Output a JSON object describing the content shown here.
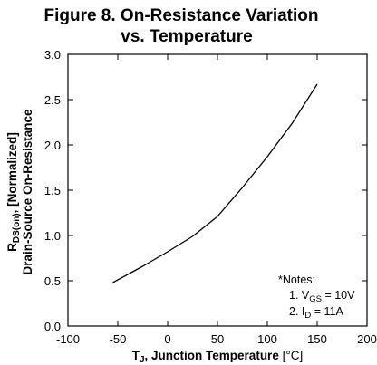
{
  "chart_data": {
    "type": "line",
    "title": "Figure 8. On-Resistance Variation",
    "subtitle": "vs. Temperature",
    "xlabel": {
      "prefix": "T",
      "sub": "J",
      "main": ", Junction Temperature ",
      "unit_open": "[",
      "unit": "°C",
      "unit_close": "]"
    },
    "ylabel": {
      "line1_prefix": "R",
      "line1_sub": "DS(on)",
      "line1_main": ", [Normalized]",
      "line2": "Drain-Source On-Resistance"
    },
    "xlim": [
      -100,
      200
    ],
    "ylim": [
      0.0,
      3.0
    ],
    "x_ticks": [
      {
        "value": -100,
        "label": "-100"
      },
      {
        "value": -50,
        "label": "-50"
      },
      {
        "value": 0,
        "label": "0"
      },
      {
        "value": 50,
        "label": "50"
      },
      {
        "value": 100,
        "label": "100"
      },
      {
        "value": 150,
        "label": "150"
      },
      {
        "value": 200,
        "label": "200"
      }
    ],
    "y_ticks": [
      {
        "value": 0.0,
        "label": "0.0"
      },
      {
        "value": 0.5,
        "label": "0.5"
      },
      {
        "value": 1.0,
        "label": "1.0"
      },
      {
        "value": 1.5,
        "label": "1.5"
      },
      {
        "value": 2.0,
        "label": "2.0"
      },
      {
        "value": 2.5,
        "label": "2.5"
      },
      {
        "value": 3.0,
        "label": "3.0"
      }
    ],
    "grid": false,
    "series": [
      {
        "x": [
          -55,
          -25,
          0,
          25,
          50,
          75,
          100,
          125,
          150
        ],
        "y": [
          0.48,
          0.66,
          0.82,
          0.99,
          1.21,
          1.53,
          1.87,
          2.24,
          2.67
        ]
      }
    ],
    "notes": {
      "header": "*Notes:",
      "items": [
        {
          "prefix": "1. V",
          "sub": "GS",
          "rest": " = 10V"
        },
        {
          "prefix": "2. I",
          "sub": "D",
          "rest": " = 11A"
        }
      ]
    }
  }
}
